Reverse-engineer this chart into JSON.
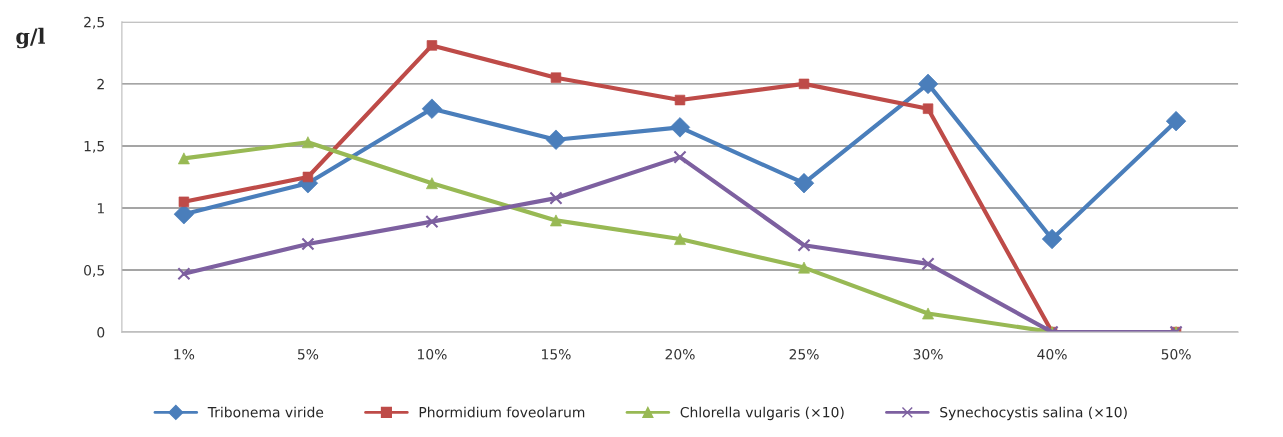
{
  "chart_data": {
    "type": "line",
    "ylabel": "g/l",
    "categories": [
      "1%",
      "5%",
      "10%",
      "15%",
      "20%",
      "25%",
      "30%",
      "40%",
      "50%"
    ],
    "series": [
      {
        "name": "Tribonema viride",
        "color": "#4a7ebb",
        "marker": "diamond",
        "values": [
          0.95,
          1.2,
          1.8,
          1.55,
          1.65,
          1.2,
          2.0,
          0.75,
          1.7
        ]
      },
      {
        "name": "Phormidium foveolarum",
        "color": "#be4b48",
        "marker": "square",
        "values": [
          1.05,
          1.25,
          2.31,
          2.05,
          1.87,
          2.0,
          1.8,
          0,
          0
        ]
      },
      {
        "name": "Chlorella vulgaris (×10)",
        "color": "#98b954",
        "marker": "triangle",
        "values": [
          1.4,
          1.53,
          1.2,
          0.9,
          0.75,
          0.52,
          0.15,
          0,
          0
        ]
      },
      {
        "name": "Synechocystis salina (×10)",
        "color": "#7d60a0",
        "marker": "cross",
        "values": [
          0.47,
          0.71,
          0.89,
          1.08,
          1.41,
          0.7,
          0.55,
          0,
          0
        ]
      }
    ],
    "ylim": [
      0,
      2.5
    ],
    "yticks": [
      0,
      {
        "value": 0.5,
        "label": "0,5"
      },
      1,
      {
        "value": 1.5,
        "label": "1,5"
      },
      2,
      {
        "value": 2.5,
        "label": "2,5"
      }
    ],
    "grid": "y",
    "legend": "bottom",
    "line_style": "solid"
  }
}
